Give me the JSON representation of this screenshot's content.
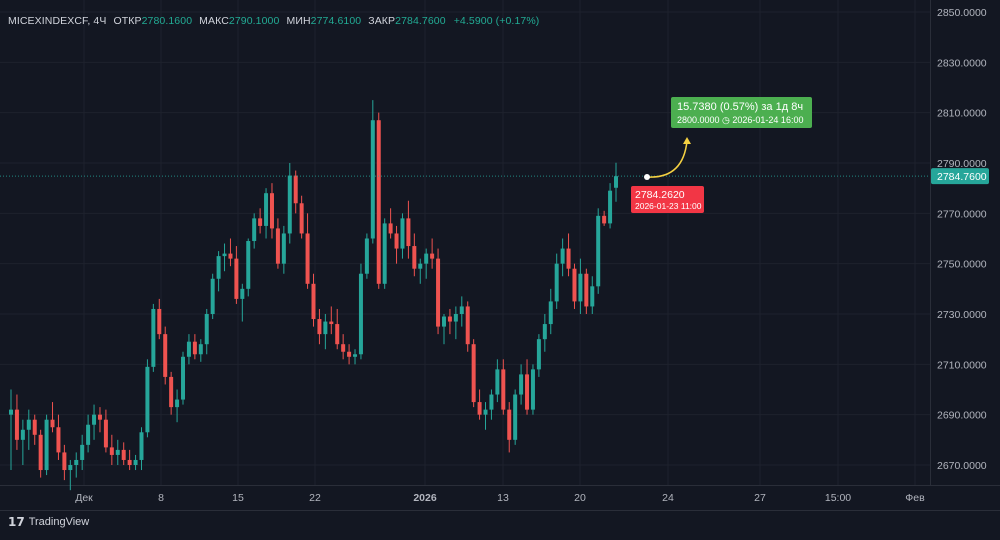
{
  "legend": {
    "symbol": "MICEXINDEXCF, 4Ч",
    "open_label": "ОТКР",
    "open": "2780.1600",
    "high_label": "МАКС",
    "high": "2790.1000",
    "low_label": "МИН",
    "low": "2774.6100",
    "close_label": "ЗАКР",
    "close": "2784.7600",
    "change": "+4.5900 (+0.17%)"
  },
  "price_axis": {
    "ticks": [
      "2850.0000",
      "2830.0000",
      "2810.0000",
      "2790.0000",
      "2770.0000",
      "2750.0000",
      "2730.0000",
      "2710.0000",
      "2690.0000",
      "2670.0000"
    ],
    "current_price": "2784.7600"
  },
  "time_axis": {
    "ticks": [
      "Дек",
      "8",
      "15",
      "22",
      "2026",
      "13",
      "20",
      "24",
      "27",
      "15:00",
      "Фев"
    ]
  },
  "measure": {
    "start_price": "2784.2620",
    "start_time": "2026-01-23 11:00",
    "result": "15.7380 (0.57%) за 1д 8ч",
    "end_detail": "2800.0000 ◷ 2026-01-24  16:00"
  },
  "colors": {
    "up": "#26a69a",
    "down": "#ef5350",
    "background": "#131722",
    "grid": "#1e222d",
    "measure_up": "#4caf50",
    "measure_start": "#f23645",
    "arrow": "#f5d142"
  },
  "chart_data": {
    "type": "candlestick",
    "title": "MICEXINDEXCF, 4Ч",
    "ylim": [
      2665,
      2851
    ],
    "candles": [
      [
        2690,
        2700,
        2668,
        2692
      ],
      [
        2692,
        2698,
        2676,
        2680
      ],
      [
        2680,
        2688,
        2670,
        2684
      ],
      [
        2684,
        2692,
        2676,
        2688
      ],
      [
        2688,
        2690,
        2678,
        2682
      ],
      [
        2682,
        2684,
        2665,
        2668
      ],
      [
        2668,
        2690,
        2666,
        2688
      ],
      [
        2688,
        2695,
        2683,
        2685
      ],
      [
        2685,
        2690,
        2672,
        2675
      ],
      [
        2675,
        2678,
        2664,
        2668
      ],
      [
        2668,
        2672,
        2660,
        2670
      ],
      [
        2670,
        2675,
        2665,
        2672
      ],
      [
        2672,
        2682,
        2668,
        2678
      ],
      [
        2678,
        2690,
        2675,
        2686
      ],
      [
        2686,
        2694,
        2680,
        2690
      ],
      [
        2690,
        2693,
        2683,
        2688
      ],
      [
        2688,
        2692,
        2675,
        2677
      ],
      [
        2677,
        2682,
        2670,
        2674
      ],
      [
        2674,
        2680,
        2670,
        2676
      ],
      [
        2676,
        2679,
        2670,
        2672
      ],
      [
        2672,
        2676,
        2668,
        2670
      ],
      [
        2670,
        2674,
        2668,
        2672
      ],
      [
        2672,
        2685,
        2668,
        2683
      ],
      [
        2683,
        2712,
        2681,
        2709
      ],
      [
        2709,
        2734,
        2707,
        2732
      ],
      [
        2732,
        2736,
        2720,
        2722
      ],
      [
        2722,
        2725,
        2702,
        2705
      ],
      [
        2705,
        2707,
        2690,
        2693
      ],
      [
        2693,
        2700,
        2687,
        2696
      ],
      [
        2696,
        2715,
        2694,
        2713
      ],
      [
        2713,
        2722,
        2710,
        2719
      ],
      [
        2719,
        2722,
        2712,
        2714
      ],
      [
        2714,
        2720,
        2711,
        2718
      ],
      [
        2718,
        2732,
        2714,
        2730
      ],
      [
        2730,
        2746,
        2728,
        2744
      ],
      [
        2744,
        2755,
        2739,
        2753
      ],
      [
        2753,
        2758,
        2747,
        2754
      ],
      [
        2754,
        2760,
        2749,
        2752
      ],
      [
        2752,
        2757,
        2734,
        2736
      ],
      [
        2736,
        2742,
        2727,
        2740
      ],
      [
        2740,
        2760,
        2737,
        2759
      ],
      [
        2759,
        2770,
        2756,
        2768
      ],
      [
        2768,
        2772,
        2762,
        2765
      ],
      [
        2765,
        2780,
        2760,
        2778
      ],
      [
        2778,
        2782,
        2760,
        2764
      ],
      [
        2764,
        2768,
        2748,
        2750
      ],
      [
        2750,
        2765,
        2746,
        2762
      ],
      [
        2762,
        2790,
        2758,
        2785
      ],
      [
        2785,
        2787,
        2770,
        2774
      ],
      [
        2774,
        2777,
        2760,
        2762
      ],
      [
        2762,
        2770,
        2740,
        2742
      ],
      [
        2742,
        2746,
        2725,
        2728
      ],
      [
        2728,
        2732,
        2718,
        2722
      ],
      [
        2722,
        2730,
        2716,
        2727
      ],
      [
        2727,
        2733,
        2722,
        2726
      ],
      [
        2726,
        2732,
        2716,
        2718
      ],
      [
        2718,
        2722,
        2712,
        2715
      ],
      [
        2715,
        2718,
        2710,
        2713
      ],
      [
        2713,
        2716,
        2710,
        2714
      ],
      [
        2714,
        2750,
        2712,
        2746
      ],
      [
        2746,
        2762,
        2744,
        2760
      ],
      [
        2760,
        2815,
        2758,
        2807
      ],
      [
        2807,
        2810,
        2740,
        2742
      ],
      [
        2742,
        2768,
        2740,
        2766
      ],
      [
        2766,
        2772,
        2760,
        2762
      ],
      [
        2762,
        2765,
        2750,
        2756
      ],
      [
        2756,
        2770,
        2752,
        2768
      ],
      [
        2768,
        2775,
        2752,
        2757
      ],
      [
        2757,
        2762,
        2745,
        2748
      ],
      [
        2748,
        2752,
        2742,
        2750
      ],
      [
        2750,
        2756,
        2744,
        2754
      ],
      [
        2754,
        2760,
        2748,
        2752
      ],
      [
        2752,
        2756,
        2722,
        2725
      ],
      [
        2725,
        2730,
        2718,
        2729
      ],
      [
        2729,
        2732,
        2722,
        2727
      ],
      [
        2727,
        2733,
        2720,
        2730
      ],
      [
        2730,
        2737,
        2725,
        2733
      ],
      [
        2733,
        2735,
        2715,
        2718
      ],
      [
        2718,
        2720,
        2693,
        2695
      ],
      [
        2695,
        2700,
        2688,
        2690
      ],
      [
        2690,
        2695,
        2684,
        2692
      ],
      [
        2692,
        2700,
        2688,
        2698
      ],
      [
        2698,
        2712,
        2695,
        2708
      ],
      [
        2708,
        2712,
        2690,
        2692
      ],
      [
        2692,
        2695,
        2675,
        2680
      ],
      [
        2680,
        2700,
        2678,
        2698
      ],
      [
        2698,
        2710,
        2694,
        2706
      ],
      [
        2706,
        2712,
        2690,
        2692
      ],
      [
        2692,
        2710,
        2690,
        2708
      ],
      [
        2708,
        2722,
        2705,
        2720
      ],
      [
        2720,
        2730,
        2715,
        2726
      ],
      [
        2726,
        2740,
        2722,
        2735
      ],
      [
        2735,
        2754,
        2732,
        2750
      ],
      [
        2750,
        2760,
        2745,
        2756
      ],
      [
        2756,
        2762,
        2745,
        2748
      ],
      [
        2748,
        2750,
        2732,
        2735
      ],
      [
        2735,
        2752,
        2730,
        2746
      ],
      [
        2746,
        2748,
        2730,
        2733
      ],
      [
        2733,
        2745,
        2730,
        2741
      ],
      [
        2741,
        2772,
        2738,
        2769
      ],
      [
        2769,
        2771,
        2765,
        2766
      ],
      [
        2766,
        2782,
        2764,
        2779
      ],
      [
        2780.16,
        2790.1,
        2774.61,
        2784.76
      ]
    ]
  }
}
